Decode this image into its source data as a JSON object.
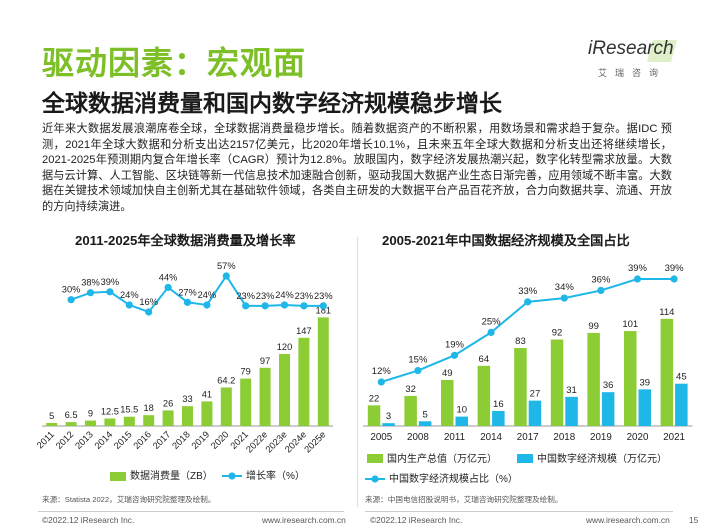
{
  "header": {
    "section_title": "驱动因素：宏观面",
    "headline": "全球数据消费量和国内数字经济规模稳步增长",
    "logo_text": "iResearch",
    "logo_sub": "艾瑞咨询"
  },
  "paragraph": "近年来大数据发展浪潮席卷全球，全球数据消费量稳步增长。随着数据资产的不断积累，用数场景和需求趋于复杂。据IDC 预测，2021年全球大数据和分析支出达2157亿美元，比2020年增长10.1%，且未来五年全球大数据和分析支出还将继续增长，2021-2025年预测期内复合年增长率（CAGR）预计为12.8%。放眼国内，数字经济发展热潮兴起，数字化转型需求放量。大数据与云计算、人工智能、区块链等新一代信息技术加速融合创新，驱动我国大数据产业生态日渐完善，应用领域不断丰富。大数据在关键技术领域加快自主创新尤其在基础软件领域，各类自主研发的大数据平台产品百花齐放，合力向数据共享、流通、开放的方向持续演进。",
  "colors": {
    "green": "#7cbf26",
    "light_green": "#8ccd35",
    "blue": "#1fb6e8",
    "line_blue": "#1fb6e8"
  },
  "chart_data": [
    {
      "type": "bar",
      "title": "2011-2025年全球数据消费量及增长率",
      "categories": [
        "2011",
        "2012",
        "2013",
        "2014",
        "2015",
        "2016",
        "2017",
        "2018",
        "2019",
        "2020",
        "2021",
        "2022e",
        "2023e",
        "2024e",
        "2025e"
      ],
      "series": [
        {
          "name": "数据消费量（ZB）",
          "type": "bar",
          "values": [
            5,
            6.5,
            9,
            12.5,
            15.5,
            18,
            26,
            33,
            41,
            64.2,
            79,
            97,
            120,
            147,
            181
          ],
          "labels": [
            "5",
            "6.5",
            "9",
            "12.5",
            "15.5",
            "18",
            "26",
            "33",
            "41",
            "64.2",
            "79",
            "97",
            "120",
            "147",
            "181"
          ]
        },
        {
          "name": "增长率（%）",
          "type": "line",
          "values": [
            null,
            30,
            38,
            39,
            24,
            16,
            44,
            27,
            24,
            57,
            23,
            23,
            24,
            23,
            23
          ],
          "labels": [
            "",
            "30%",
            "38%",
            "39%",
            "24%",
            "16%",
            "44%",
            "27%",
            "24%",
            "57%",
            "23%",
            "23%",
            "24%",
            "23%",
            "23%"
          ]
        }
      ],
      "source": "来源：Statista 2022，艾瑞咨询研究院整理及绘制。"
    },
    {
      "type": "bar",
      "title": "2005-2021年中国数据经济规模及全国占比",
      "categories": [
        "2005",
        "2008",
        "2011",
        "2014",
        "2017",
        "2018",
        "2019",
        "2020",
        "2021"
      ],
      "series": [
        {
          "name": "国内生产总值（万亿元）",
          "type": "bar",
          "values": [
            22,
            32,
            49,
            64,
            83,
            92,
            99,
            101,
            114
          ],
          "labels": [
            "22",
            "32",
            "49",
            "64",
            "83",
            "92",
            "99",
            "101",
            "114"
          ]
        },
        {
          "name": "中国数字经济规模（万亿元）",
          "type": "bar",
          "values": [
            3,
            5,
            10,
            16,
            27,
            31,
            36,
            39,
            45
          ],
          "labels": [
            "3",
            "5",
            "10",
            "16",
            "27",
            "31",
            "36",
            "39",
            "45"
          ]
        },
        {
          "name": "中国数字经济规模占比（%）",
          "type": "line",
          "values": [
            12,
            15,
            19,
            25,
            33,
            34,
            36,
            39,
            39
          ],
          "labels": [
            "12%",
            "15%",
            "19%",
            "25%",
            "33%",
            "34%",
            "36%",
            "39%",
            "39%"
          ]
        }
      ],
      "source": "来源：中国电信招股说明书，艾瑞咨询研究院整理及绘制。"
    }
  ],
  "footer": {
    "left_copy": "©2022.12 iResearch Inc.",
    "left_url": "www.iresearch.com.cn",
    "right_copy": "©2022.12 iResearch Inc.",
    "right_url": "www.iresearch.com.cn",
    "page": "15"
  }
}
